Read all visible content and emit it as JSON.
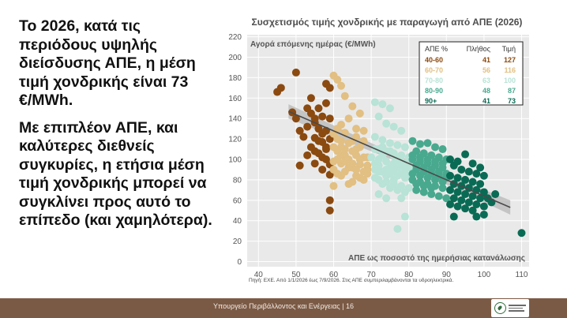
{
  "slide": {
    "paragraph1": "Το 2026, κατά τις περιόδους υψηλής διείσδυσης ΑΠΕ, η μέση τιμή χονδρικής είναι 73 €/MWh.",
    "paragraph2": "Με επιπλέον ΑΠΕ, και καλύτερες διεθνείς συγκυρίες, η ετήσια μέση τιμή χονδρικής μπορεί να συγκλίνει προς αυτό το επίπεδο (και χαμηλότερα).",
    "footer_text": "Υπουργείο Περιβάλλοντος και Ενέργειας | 16"
  },
  "chart_data": {
    "type": "scatter",
    "title": "Συσχετισμός τιμής χονδρικής με παραγωγή από ΑΠΕ (2026)",
    "ylabel": "Αγορά επόμενης ημέρας (€/MWh)",
    "xlabel": "ΑΠΕ ως ποσοστό της ημερήσιας κατανάλωσης",
    "source": "Πηγή: ΕΧΕ. Από 1/1/2026 έως 7/9/2026. Στις ΑΠΕ συμπεριλαμβάνονται τα υδροηλεκτρικά.",
    "xlim": [
      37,
      112
    ],
    "ylim": [
      -5,
      222
    ],
    "x_ticks": [
      40,
      50,
      60,
      70,
      80,
      90,
      100,
      110
    ],
    "y_ticks": [
      0,
      20,
      40,
      60,
      80,
      100,
      120,
      140,
      160,
      180,
      200,
      220
    ],
    "grid": true,
    "legend": {
      "position": "top-right",
      "headers": [
        "ΑΠΕ %",
        "Πλήθος",
        "Τιμή"
      ],
      "rows": [
        {
          "range": "40-60",
          "count": "41",
          "price": "127"
        },
        {
          "range": "60-70",
          "count": "56",
          "price": "116"
        },
        {
          "range": "70-80",
          "count": "63",
          "price": "100"
        },
        {
          "range": "80-90",
          "count": "48",
          "price": "87"
        },
        {
          "range": "90+",
          "count": "41",
          "price": "73"
        }
      ]
    },
    "colors": [
      "#8b4a10",
      "#e2bf82",
      "#b8e3d6",
      "#48a98f",
      "#0a6b55"
    ],
    "trend_line": {
      "x": [
        48,
        107
      ],
      "y": [
        147,
        53
      ],
      "band_halfwidth": [
        7,
        3,
        7
      ]
    },
    "series": [
      {
        "name": "40-60",
        "points": [
          [
            45,
            166
          ],
          [
            46,
            170
          ],
          [
            50,
            185
          ],
          [
            58,
            174
          ],
          [
            49,
            146
          ],
          [
            53,
            150
          ],
          [
            55,
            136
          ],
          [
            56,
            130
          ],
          [
            54,
            145
          ],
          [
            57,
            142
          ],
          [
            51,
            128
          ],
          [
            55,
            121
          ],
          [
            57,
            117
          ],
          [
            58,
            110
          ],
          [
            54,
            112
          ],
          [
            56,
            106
          ],
          [
            58,
            100
          ],
          [
            55,
            96
          ],
          [
            51,
            94
          ],
          [
            53,
            104
          ],
          [
            54,
            160
          ],
          [
            59,
            170
          ],
          [
            58,
            155
          ],
          [
            50,
            140
          ],
          [
            57,
            125
          ],
          [
            55,
            140
          ],
          [
            59,
            120
          ],
          [
            52,
            122
          ],
          [
            56,
            118
          ],
          [
            58,
            128
          ],
          [
            59,
            95
          ],
          [
            57,
            90
          ],
          [
            59,
            85
          ],
          [
            59,
            60
          ],
          [
            59,
            50
          ],
          [
            58,
            112
          ],
          [
            56,
            150
          ],
          [
            53,
            132
          ],
          [
            55,
            108
          ],
          [
            57,
            102
          ],
          [
            59,
            140
          ]
        ]
      },
      {
        "name": "60-70",
        "points": [
          [
            60,
            182
          ],
          [
            62,
            172
          ],
          [
            61,
            178
          ],
          [
            63,
            162
          ],
          [
            65,
            152
          ],
          [
            67,
            145
          ],
          [
            64,
            140
          ],
          [
            66,
            130
          ],
          [
            62,
            134
          ],
          [
            68,
            128
          ],
          [
            60,
            125
          ],
          [
            62,
            118
          ],
          [
            65,
            118
          ],
          [
            67,
            112
          ],
          [
            63,
            110
          ],
          [
            61,
            108
          ],
          [
            66,
            104
          ],
          [
            68,
            102
          ],
          [
            64,
            100
          ],
          [
            60,
            98
          ],
          [
            62,
            96
          ],
          [
            67,
            95
          ],
          [
            65,
            92
          ],
          [
            69,
            90
          ],
          [
            63,
            88
          ],
          [
            61,
            86
          ],
          [
            66,
            84
          ],
          [
            68,
            80
          ],
          [
            64,
            76
          ],
          [
            60,
            74
          ],
          [
            62,
            112
          ],
          [
            65,
            108
          ],
          [
            69,
            102
          ],
          [
            61,
            130
          ],
          [
            63,
            126
          ],
          [
            66,
            122
          ],
          [
            68,
            118
          ],
          [
            64,
            116
          ],
          [
            60,
            112
          ],
          [
            62,
            104
          ],
          [
            67,
            100
          ],
          [
            65,
            96
          ],
          [
            69,
            94
          ],
          [
            61,
            100
          ],
          [
            63,
            98
          ],
          [
            66,
            90
          ],
          [
            68,
            88
          ],
          [
            64,
            92
          ],
          [
            60,
            90
          ],
          [
            62,
            84
          ],
          [
            67,
            82
          ],
          [
            65,
            78
          ],
          [
            69,
            86
          ],
          [
            61,
            120
          ],
          [
            63,
            104
          ],
          [
            66,
            110
          ]
        ]
      },
      {
        "name": "70-80",
        "points": [
          [
            71,
            156
          ],
          [
            73,
            154
          ],
          [
            75,
            150
          ],
          [
            72,
            142
          ],
          [
            74,
            135
          ],
          [
            76,
            132
          ],
          [
            78,
            128
          ],
          [
            71,
            122
          ],
          [
            73,
            119
          ],
          [
            75,
            116
          ],
          [
            77,
            114
          ],
          [
            79,
            112
          ],
          [
            72,
            110
          ],
          [
            74,
            108
          ],
          [
            76,
            106
          ],
          [
            78,
            104
          ],
          [
            70,
            102
          ],
          [
            72,
            100
          ],
          [
            74,
            98
          ],
          [
            76,
            96
          ],
          [
            78,
            94
          ],
          [
            80,
            92
          ],
          [
            71,
            90
          ],
          [
            73,
            88
          ],
          [
            75,
            86
          ],
          [
            77,
            84
          ],
          [
            79,
            82
          ],
          [
            72,
            80
          ],
          [
            74,
            78
          ],
          [
            76,
            76
          ],
          [
            78,
            74
          ],
          [
            80,
            72
          ],
          [
            71,
            96
          ],
          [
            73,
            104
          ],
          [
            75,
            92
          ],
          [
            77,
            100
          ],
          [
            79,
            96
          ],
          [
            72,
            94
          ],
          [
            74,
            90
          ],
          [
            76,
            88
          ],
          [
            78,
            86
          ],
          [
            80,
            84
          ],
          [
            71,
            82
          ],
          [
            73,
            76
          ],
          [
            75,
            72
          ],
          [
            77,
            70
          ],
          [
            79,
            68
          ],
          [
            72,
            66
          ],
          [
            74,
            62
          ],
          [
            76,
            104
          ],
          [
            78,
            98
          ],
          [
            80,
            102
          ],
          [
            71,
            110
          ],
          [
            73,
            112
          ],
          [
            75,
            108
          ],
          [
            77,
            92
          ],
          [
            79,
            90
          ],
          [
            72,
            88
          ],
          [
            74,
            84
          ],
          [
            76,
            80
          ],
          [
            78,
            62
          ],
          [
            79,
            44
          ],
          [
            77,
            32
          ]
        ]
      },
      {
        "name": "80-90",
        "points": [
          [
            81,
            118
          ],
          [
            83,
            115
          ],
          [
            85,
            116
          ],
          [
            87,
            112
          ],
          [
            89,
            110
          ],
          [
            82,
            108
          ],
          [
            84,
            106
          ],
          [
            86,
            104
          ],
          [
            88,
            102
          ],
          [
            90,
            100
          ],
          [
            81,
            100
          ],
          [
            83,
            98
          ],
          [
            85,
            96
          ],
          [
            87,
            94
          ],
          [
            89,
            92
          ],
          [
            82,
            90
          ],
          [
            84,
            88
          ],
          [
            86,
            86
          ],
          [
            88,
            84
          ],
          [
            90,
            82
          ],
          [
            81,
            80
          ],
          [
            83,
            78
          ],
          [
            85,
            76
          ],
          [
            87,
            74
          ],
          [
            89,
            72
          ],
          [
            82,
            70
          ],
          [
            84,
            68
          ],
          [
            86,
            66
          ],
          [
            88,
            64
          ],
          [
            90,
            62
          ],
          [
            81,
            104
          ],
          [
            83,
            102
          ],
          [
            85,
            100
          ],
          [
            87,
            98
          ],
          [
            89,
            96
          ],
          [
            82,
            94
          ],
          [
            84,
            92
          ],
          [
            86,
            90
          ],
          [
            88,
            88
          ],
          [
            90,
            86
          ],
          [
            81,
            86
          ],
          [
            83,
            84
          ],
          [
            85,
            82
          ],
          [
            87,
            80
          ],
          [
            89,
            78
          ],
          [
            82,
            76
          ],
          [
            84,
            74
          ],
          [
            86,
            72
          ]
        ]
      },
      {
        "name": "90+",
        "points": [
          [
            91,
            100
          ],
          [
            93,
            98
          ],
          [
            95,
            105
          ],
          [
            97,
            96
          ],
          [
            99,
            92
          ],
          [
            92,
            94
          ],
          [
            94,
            90
          ],
          [
            96,
            88
          ],
          [
            98,
            86
          ],
          [
            100,
            84
          ],
          [
            91,
            84
          ],
          [
            93,
            82
          ],
          [
            95,
            80
          ],
          [
            97,
            78
          ],
          [
            99,
            76
          ],
          [
            92,
            76
          ],
          [
            94,
            74
          ],
          [
            96,
            72
          ],
          [
            98,
            70
          ],
          [
            100,
            68
          ],
          [
            91,
            70
          ],
          [
            93,
            68
          ],
          [
            95,
            66
          ],
          [
            97,
            64
          ],
          [
            99,
            62
          ],
          [
            92,
            62
          ],
          [
            94,
            60
          ],
          [
            96,
            58
          ],
          [
            98,
            56
          ],
          [
            100,
            54
          ],
          [
            91,
            56
          ],
          [
            93,
            54
          ],
          [
            95,
            52
          ],
          [
            97,
            50
          ],
          [
            101,
            62
          ],
          [
            102,
            58
          ],
          [
            103,
            66
          ],
          [
            100,
            46
          ],
          [
            98,
            44
          ],
          [
            110,
            28
          ],
          [
            92,
            44
          ]
        ]
      }
    ]
  }
}
